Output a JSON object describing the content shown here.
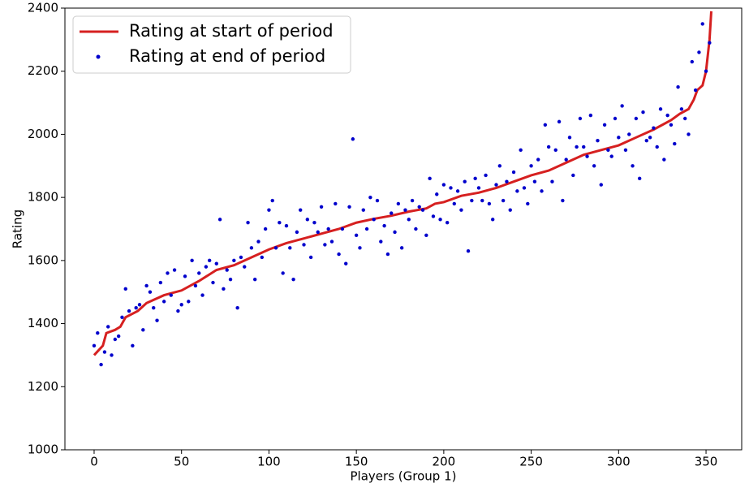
{
  "chart_data": {
    "type": "line",
    "xlabel": "Players (Group 1)",
    "ylabel": "Rating",
    "xlim": [
      -16.7,
      370.4
    ],
    "ylim": [
      1000,
      2400
    ],
    "xticks": [
      0,
      50,
      100,
      150,
      200,
      250,
      300,
      350
    ],
    "yticks": [
      1000,
      1200,
      1400,
      1600,
      1800,
      2000,
      2200,
      2400
    ],
    "legend": "upper-left",
    "series": [
      {
        "name": "Rating at start of period",
        "color": "#d62020",
        "type": "line",
        "x": [
          0,
          5,
          7,
          12,
          15,
          18,
          25,
          30,
          40,
          50,
          60,
          70,
          80,
          90,
          100,
          110,
          120,
          130,
          140,
          150,
          160,
          170,
          180,
          190,
          195,
          200,
          210,
          220,
          230,
          240,
          250,
          260,
          270,
          280,
          290,
          300,
          310,
          320,
          330,
          335,
          340,
          343,
          345,
          348,
          350,
          352,
          353
        ],
        "values": [
          1300,
          1330,
          1370,
          1380,
          1390,
          1420,
          1440,
          1465,
          1490,
          1505,
          1535,
          1570,
          1585,
          1610,
          1635,
          1655,
          1670,
          1685,
          1700,
          1720,
          1732,
          1742,
          1755,
          1765,
          1780,
          1785,
          1805,
          1815,
          1830,
          1850,
          1870,
          1885,
          1910,
          1935,
          1950,
          1965,
          1990,
          2015,
          2045,
          2065,
          2080,
          2110,
          2140,
          2155,
          2200,
          2300,
          2390
        ]
      },
      {
        "name": "Rating at end of period",
        "color": "#0000cc",
        "type": "scatter",
        "x": [
          0,
          2,
          4,
          6,
          8,
          10,
          12,
          14,
          16,
          18,
          20,
          22,
          24,
          26,
          28,
          30,
          32,
          34,
          36,
          38,
          40,
          42,
          44,
          46,
          48,
          50,
          52,
          54,
          56,
          58,
          60,
          62,
          64,
          66,
          68,
          70,
          72,
          74,
          76,
          78,
          80,
          82,
          84,
          86,
          88,
          90,
          92,
          94,
          96,
          98,
          100,
          102,
          104,
          106,
          108,
          110,
          112,
          114,
          116,
          118,
          120,
          122,
          124,
          126,
          128,
          130,
          132,
          134,
          136,
          138,
          140,
          142,
          144,
          146,
          148,
          150,
          152,
          154,
          156,
          158,
          160,
          162,
          164,
          166,
          168,
          170,
          172,
          174,
          176,
          178,
          180,
          182,
          184,
          186,
          188,
          190,
          192,
          194,
          196,
          198,
          200,
          202,
          204,
          206,
          208,
          210,
          212,
          214,
          216,
          218,
          220,
          222,
          224,
          226,
          228,
          230,
          232,
          234,
          236,
          238,
          240,
          242,
          244,
          246,
          248,
          250,
          252,
          254,
          256,
          258,
          260,
          262,
          264,
          266,
          268,
          270,
          272,
          274,
          276,
          278,
          280,
          282,
          284,
          286,
          288,
          290,
          292,
          294,
          296,
          298,
          300,
          302,
          304,
          306,
          308,
          310,
          312,
          314,
          316,
          318,
          320,
          322,
          324,
          326,
          328,
          330,
          332,
          334,
          336,
          338,
          340,
          342,
          344,
          346,
          348,
          350,
          352
        ],
        "values": [
          1330,
          1370,
          1270,
          1310,
          1390,
          1300,
          1350,
          1360,
          1420,
          1510,
          1440,
          1330,
          1450,
          1460,
          1380,
          1520,
          1500,
          1450,
          1410,
          1530,
          1470,
          1560,
          1490,
          1570,
          1440,
          1460,
          1550,
          1470,
          1600,
          1520,
          1560,
          1490,
          1580,
          1600,
          1530,
          1590,
          1730,
          1510,
          1570,
          1540,
          1600,
          1450,
          1610,
          1580,
          1720,
          1640,
          1540,
          1660,
          1610,
          1700,
          1760,
          1790,
          1640,
          1720,
          1560,
          1710,
          1640,
          1540,
          1690,
          1760,
          1650,
          1730,
          1610,
          1720,
          1690,
          1770,
          1650,
          1700,
          1660,
          1780,
          1620,
          1700,
          1590,
          1770,
          1985,
          1680,
          1640,
          1760,
          1700,
          1800,
          1730,
          1790,
          1660,
          1710,
          1620,
          1750,
          1690,
          1780,
          1640,
          1760,
          1730,
          1790,
          1700,
          1770,
          1760,
          1680,
          1860,
          1740,
          1810,
          1730,
          1840,
          1720,
          1830,
          1780,
          1820,
          1760,
          1850,
          1630,
          1790,
          1860,
          1830,
          1790,
          1870,
          1780,
          1730,
          1840,
          1900,
          1790,
          1850,
          1760,
          1880,
          1820,
          1950,
          1830,
          1780,
          1900,
          1850,
          1920,
          1820,
          2030,
          1960,
          1850,
          1950,
          2040,
          1790,
          1920,
          1990,
          1870,
          1960,
          2050,
          1960,
          1930,
          2060,
          1900,
          1980,
          1840,
          2030,
          1950,
          1930,
          2050,
          1990,
          2090,
          1950,
          2000,
          1900,
          2050,
          1860,
          2070,
          1980,
          1990,
          2020,
          1960,
          2080,
          1920,
          2060,
          2030,
          1970,
          2150,
          2080,
          2050,
          2000,
          2230,
          2140,
          2260,
          2350,
          2200,
          2290
        ]
      }
    ]
  }
}
